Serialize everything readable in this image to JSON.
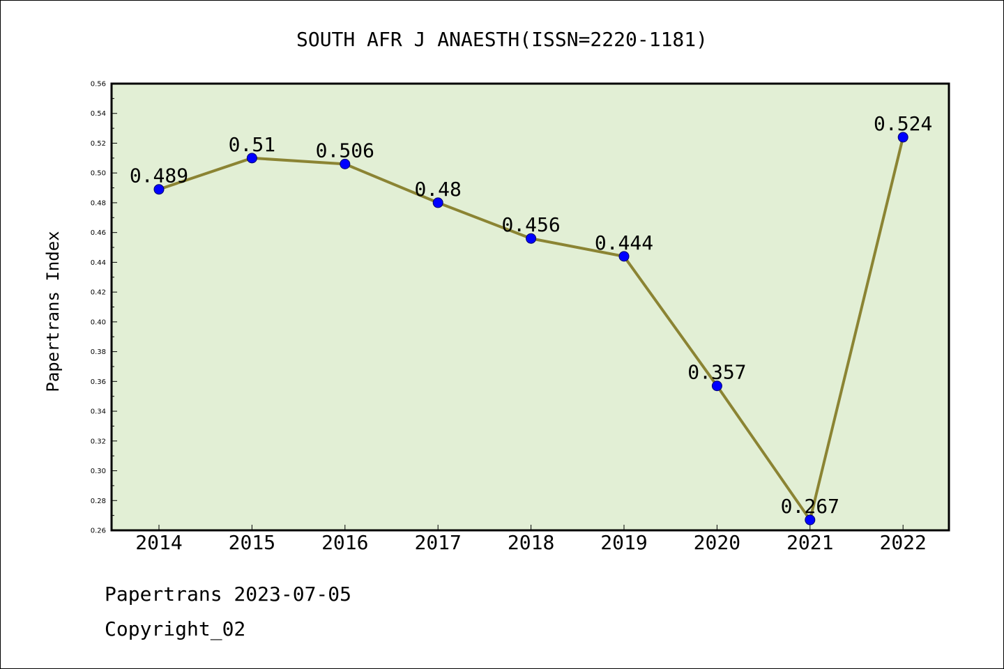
{
  "footer": {
    "date_text": "Papertrans 2023-07-05",
    "copyright_text": "Copyright_02"
  },
  "colors": {
    "plot_background": "#e2efd5",
    "line": "#8b8433",
    "marker": "#0000ff"
  },
  "chart_data": {
    "type": "line",
    "title": "SOUTH AFR J ANAESTH(ISSN=2220-1181)",
    "xlabel": "",
    "ylabel": "Papertrans Index",
    "categories": [
      "2014",
      "2015",
      "2016",
      "2017",
      "2018",
      "2019",
      "2020",
      "2021",
      "2022"
    ],
    "series": [
      {
        "values": [
          0.489,
          0.51,
          0.506,
          0.48,
          0.456,
          0.444,
          0.357,
          0.267,
          0.524
        ],
        "labels": [
          "0.489",
          "0.51",
          "0.506",
          "0.48",
          "0.456",
          "0.444",
          "0.357",
          "0.267",
          "0.524"
        ]
      }
    ],
    "ylim": [
      0.26,
      0.56
    ],
    "yticks": [
      "0.26",
      "0.28",
      "0.30",
      "0.32",
      "0.34",
      "0.36",
      "0.38",
      "0.40",
      "0.42",
      "0.44",
      "0.46",
      "0.48",
      "0.50",
      "0.52",
      "0.54",
      "0.56"
    ],
    "grid": false,
    "legend": "none"
  }
}
